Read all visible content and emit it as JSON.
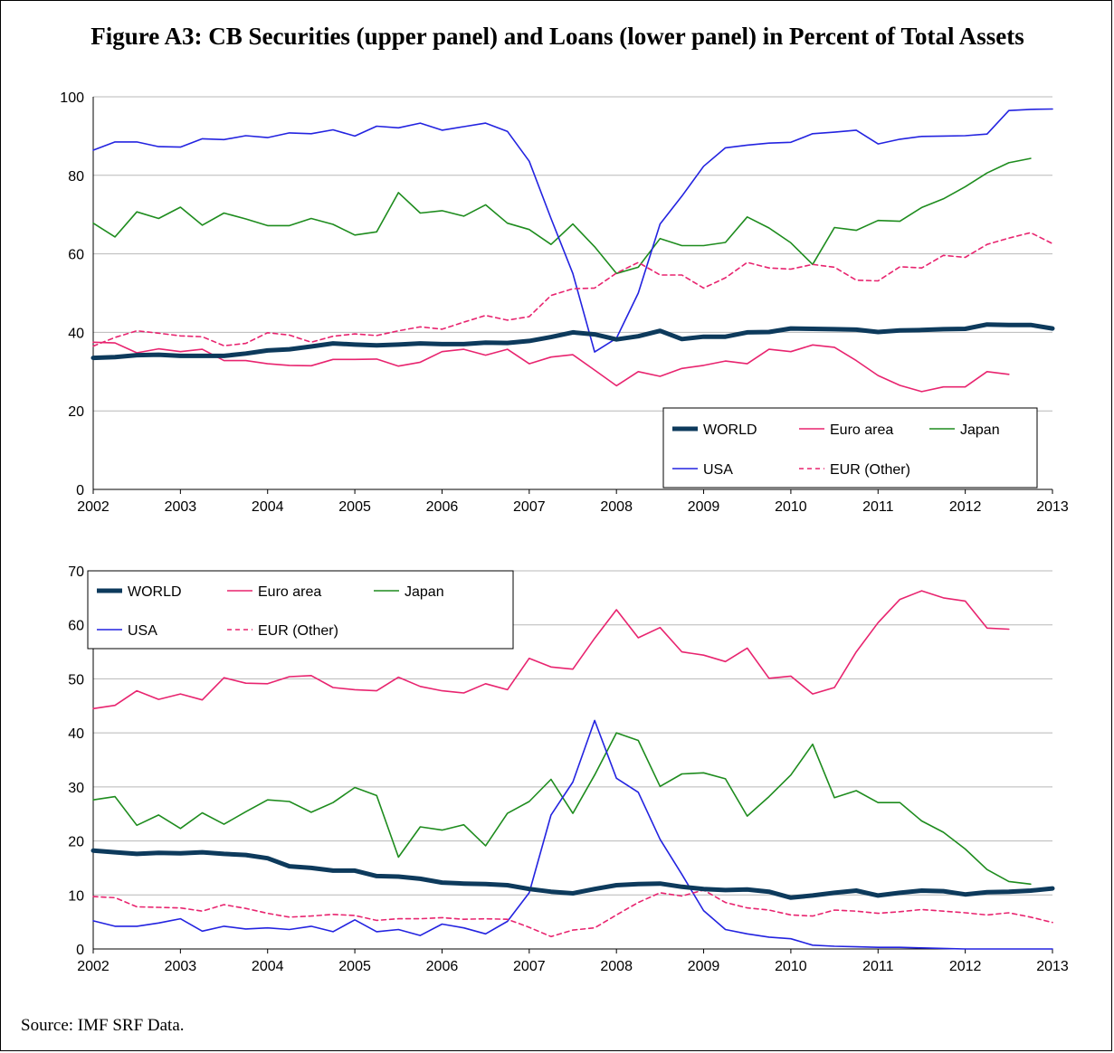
{
  "figure": {
    "title": "Figure A3: CB Securities (upper panel) and Loans (lower panel) in Percent of Total Assets",
    "source": "Source: IMF SRF Data."
  },
  "colors": {
    "WORLD": "#0d3a5c",
    "Euro area": "#e8246f",
    "Japan": "#1e8c1e",
    "USA": "#2323e0",
    "EUR (Other)": "#e8246f"
  },
  "chart_data": [
    {
      "type": "line",
      "panel": "upper",
      "title": "",
      "xlabel": "",
      "ylabel": "",
      "xlim": [
        2002,
        2013
      ],
      "ylim": [
        0,
        100
      ],
      "yticks": [
        0,
        20,
        40,
        60,
        80,
        100
      ],
      "xticks": [
        "2002",
        "2003",
        "2004",
        "2005",
        "2006",
        "2007",
        "2008",
        "2009",
        "2010",
        "2011",
        "2012",
        "2013"
      ],
      "grid": "horizontal",
      "legend": "bottom-right",
      "series": [
        {
          "name": "WORLD",
          "x": [
            2002,
            2002.25,
            2002.5,
            2002.75,
            2003,
            2003.25,
            2003.5,
            2003.75,
            2004,
            2004.25,
            2004.5,
            2004.75,
            2005,
            2005.25,
            2005.5,
            2005.75,
            2006,
            2006.25,
            2006.5,
            2006.75,
            2007,
            2007.25,
            2007.5,
            2007.75,
            2008,
            2008.25,
            2008.5,
            2008.75,
            2009,
            2009.25,
            2009.5,
            2009.75,
            2010,
            2010.25,
            2010.5,
            2010.75,
            2011,
            2011.25,
            2011.5,
            2011.75,
            2012,
            2012.25,
            2012.5,
            2012.75,
            2013
          ],
          "values": [
            33.5,
            33.7,
            34.2,
            34.3,
            34.0,
            34.0,
            34.0,
            34.6,
            35.4,
            35.7,
            36.4,
            37.2,
            36.9,
            36.7,
            36.9,
            37.2,
            37.0,
            37.0,
            37.4,
            37.3,
            37.8,
            38.8,
            40.0,
            39.5,
            38.2,
            39.0,
            40.4,
            38.3,
            38.9,
            38.9,
            40.0,
            40.1,
            41.0,
            40.9,
            40.8,
            40.7,
            40.1,
            40.5,
            40.6,
            40.8,
            40.9,
            42.0,
            41.9,
            41.9,
            41.0
          ]
        },
        {
          "name": "Euro area",
          "x": [
            2002,
            2002.25,
            2002.5,
            2002.75,
            2003,
            2003.25,
            2003.5,
            2003.75,
            2004,
            2004.25,
            2004.5,
            2004.75,
            2005,
            2005.25,
            2005.5,
            2005.75,
            2006,
            2006.25,
            2006.5,
            2006.75,
            2007,
            2007.25,
            2007.5,
            2007.75,
            2008,
            2008.25,
            2008.5,
            2008.75,
            2009,
            2009.25,
            2009.5,
            2009.75,
            2010,
            2010.25,
            2010.5,
            2010.75,
            2011,
            2011.25,
            2011.5,
            2011.75,
            2012,
            2012.25,
            2012.5
          ],
          "values": [
            37.5,
            37.3,
            34.8,
            35.8,
            35.1,
            35.7,
            32.8,
            32.8,
            32.0,
            31.6,
            31.5,
            33.1,
            33.1,
            33.2,
            31.4,
            32.4,
            35.1,
            35.7,
            34.2,
            35.7,
            32.0,
            33.7,
            34.3,
            30.4,
            26.4,
            30.0,
            28.8,
            30.8,
            31.6,
            32.7,
            32.0,
            35.7,
            35.1,
            36.8,
            36.2,
            32.8,
            29.0,
            26.5,
            24.9,
            26.1,
            26.1,
            30.0,
            29.3
          ]
        },
        {
          "name": "Japan",
          "x": [
            2002,
            2002.25,
            2002.5,
            2002.75,
            2003,
            2003.25,
            2003.5,
            2003.75,
            2004,
            2004.25,
            2004.5,
            2004.75,
            2005,
            2005.25,
            2005.5,
            2005.75,
            2006,
            2006.25,
            2006.5,
            2006.75,
            2007,
            2007.25,
            2007.5,
            2007.75,
            2008,
            2008.25,
            2008.5,
            2008.75,
            2009,
            2009.25,
            2009.5,
            2009.75,
            2010,
            2010.25,
            2010.5,
            2010.75,
            2011,
            2011.25,
            2011.5,
            2011.75,
            2012,
            2012.25,
            2012.5,
            2012.75
          ],
          "values": [
            67.8,
            64.3,
            70.7,
            69.0,
            71.9,
            67.3,
            70.4,
            68.9,
            67.2,
            67.2,
            69.0,
            67.5,
            64.8,
            65.6,
            75.6,
            70.4,
            71.0,
            69.6,
            72.5,
            67.8,
            66.2,
            62.4,
            67.6,
            61.8,
            55.0,
            56.6,
            63.9,
            62.1,
            62.1,
            62.9,
            69.4,
            66.6,
            62.8,
            57.3,
            66.7,
            66.0,
            68.5,
            68.3,
            71.8,
            74.0,
            77.1,
            80.6,
            83.2,
            84.3
          ]
        },
        {
          "name": "USA",
          "x": [
            2002,
            2002.25,
            2002.5,
            2002.75,
            2003,
            2003.25,
            2003.5,
            2003.75,
            2004,
            2004.25,
            2004.5,
            2004.75,
            2005,
            2005.25,
            2005.5,
            2005.75,
            2006,
            2006.25,
            2006.5,
            2006.75,
            2007,
            2007.25,
            2007.5,
            2007.75,
            2008,
            2008.25,
            2008.5,
            2008.75,
            2009,
            2009.25,
            2009.5,
            2009.75,
            2010,
            2010.25,
            2010.5,
            2010.75,
            2011,
            2011.25,
            2011.5,
            2011.75,
            2012,
            2012.25,
            2012.5,
            2012.75,
            2013
          ],
          "values": [
            86.4,
            88.5,
            88.5,
            87.3,
            87.2,
            89.3,
            89.1,
            90.1,
            89.6,
            90.8,
            90.6,
            91.6,
            90.0,
            92.5,
            92.1,
            93.3,
            91.5,
            92.4,
            93.3,
            91.2,
            83.6,
            69.0,
            55.0,
            35.0,
            38.5,
            50.0,
            67.6,
            74.7,
            82.3,
            87.0,
            87.7,
            88.2,
            88.4,
            90.6,
            91.0,
            91.5,
            88.0,
            89.2,
            89.9,
            90.0,
            90.1,
            90.5,
            96.5,
            96.8,
            96.9
          ]
        },
        {
          "name": "EUR (Other)",
          "dashed": true,
          "x": [
            2002,
            2002.25,
            2002.5,
            2002.75,
            2003,
            2003.25,
            2003.5,
            2003.75,
            2004,
            2004.25,
            2004.5,
            2004.75,
            2005,
            2005.25,
            2005.5,
            2005.75,
            2006,
            2006.25,
            2006.5,
            2006.75,
            2007,
            2007.25,
            2007.5,
            2007.75,
            2008,
            2008.25,
            2008.5,
            2008.75,
            2009,
            2009.25,
            2009.5,
            2009.75,
            2010,
            2010.25,
            2010.5,
            2010.75,
            2011,
            2011.25,
            2011.5,
            2011.75,
            2012,
            2012.25,
            2012.5,
            2012.75,
            2013
          ],
          "values": [
            36.5,
            38.7,
            40.4,
            39.8,
            39.1,
            38.9,
            36.6,
            37.2,
            39.9,
            39.3,
            37.5,
            39.0,
            39.6,
            39.2,
            40.4,
            41.4,
            40.8,
            42.6,
            44.3,
            43.1,
            44.0,
            49.4,
            51.1,
            51.3,
            55.1,
            57.8,
            54.6,
            54.6,
            51.3,
            53.9,
            57.8,
            56.4,
            56.1,
            57.3,
            56.6,
            53.3,
            53.1,
            56.7,
            56.4,
            59.6,
            59.1,
            62.4,
            64.0,
            65.4,
            62.6
          ]
        }
      ]
    },
    {
      "type": "line",
      "panel": "lower",
      "title": "",
      "xlabel": "",
      "ylabel": "",
      "xlim": [
        2002,
        2013
      ],
      "ylim": [
        0,
        70
      ],
      "yticks": [
        0,
        10,
        20,
        30,
        40,
        50,
        60,
        70
      ],
      "xticks": [
        "2002",
        "2003",
        "2004",
        "2005",
        "2006",
        "2007",
        "2008",
        "2009",
        "2010",
        "2011",
        "2012",
        "2013"
      ],
      "grid": "horizontal",
      "legend": "top-left",
      "series": [
        {
          "name": "WORLD",
          "x": [
            2002,
            2002.25,
            2002.5,
            2002.75,
            2003,
            2003.25,
            2003.5,
            2003.75,
            2004,
            2004.25,
            2004.5,
            2004.75,
            2005,
            2005.25,
            2005.5,
            2005.75,
            2006,
            2006.25,
            2006.5,
            2006.75,
            2007,
            2007.25,
            2007.5,
            2007.75,
            2008,
            2008.25,
            2008.5,
            2008.75,
            2009,
            2009.25,
            2009.5,
            2009.75,
            2010,
            2010.25,
            2010.5,
            2010.75,
            2011,
            2011.25,
            2011.5,
            2011.75,
            2012,
            2012.25,
            2012.5,
            2012.75,
            2013
          ],
          "values": [
            18.2,
            17.9,
            17.6,
            17.8,
            17.7,
            17.9,
            17.6,
            17.4,
            16.8,
            15.3,
            15.0,
            14.5,
            14.5,
            13.5,
            13.4,
            13.0,
            12.3,
            12.1,
            12.0,
            11.8,
            11.1,
            10.6,
            10.3,
            11.1,
            11.8,
            12.0,
            12.1,
            11.5,
            11.1,
            10.9,
            11.0,
            10.6,
            9.5,
            9.9,
            10.4,
            10.8,
            9.9,
            10.4,
            10.8,
            10.7,
            10.1,
            10.5,
            10.6,
            10.8,
            11.2
          ]
        },
        {
          "name": "Euro area",
          "x": [
            2002,
            2002.25,
            2002.5,
            2002.75,
            2003,
            2003.25,
            2003.5,
            2003.75,
            2004,
            2004.25,
            2004.5,
            2004.75,
            2005,
            2005.25,
            2005.5,
            2005.75,
            2006,
            2006.25,
            2006.5,
            2006.75,
            2007,
            2007.25,
            2007.5,
            2007.75,
            2008,
            2008.25,
            2008.5,
            2008.75,
            2009,
            2009.25,
            2009.5,
            2009.75,
            2010,
            2010.25,
            2010.5,
            2010.75,
            2011,
            2011.25,
            2011.5,
            2011.75,
            2012,
            2012.25,
            2012.5
          ],
          "values": [
            44.5,
            45.1,
            47.8,
            46.2,
            47.2,
            46.1,
            50.2,
            49.2,
            49.1,
            50.4,
            50.6,
            48.4,
            48.0,
            47.8,
            50.3,
            48.6,
            47.8,
            47.4,
            49.1,
            48.0,
            53.8,
            52.2,
            51.8,
            57.5,
            62.8,
            57.6,
            59.5,
            55.0,
            54.4,
            53.2,
            55.7,
            50.1,
            50.5,
            47.2,
            48.4,
            55.0,
            60.4,
            64.7,
            66.3,
            65.0,
            64.4,
            59.4,
            59.2
          ]
        },
        {
          "name": "Japan",
          "x": [
            2002,
            2002.25,
            2002.5,
            2002.75,
            2003,
            2003.25,
            2003.5,
            2003.75,
            2004,
            2004.25,
            2004.5,
            2004.75,
            2005,
            2005.25,
            2005.5,
            2005.75,
            2006,
            2006.25,
            2006.5,
            2006.75,
            2007,
            2007.25,
            2007.5,
            2007.75,
            2008,
            2008.25,
            2008.5,
            2008.75,
            2009,
            2009.25,
            2009.5,
            2009.75,
            2010,
            2010.25,
            2010.5,
            2010.75,
            2011,
            2011.25,
            2011.5,
            2011.75,
            2012,
            2012.25,
            2012.5,
            2012.75
          ],
          "values": [
            27.6,
            28.2,
            22.9,
            24.8,
            22.3,
            25.2,
            23.1,
            25.4,
            27.6,
            27.3,
            25.3,
            27.1,
            29.9,
            28.4,
            17.0,
            22.6,
            22.0,
            23.0,
            19.1,
            25.1,
            27.3,
            31.4,
            25.1,
            32.2,
            40.0,
            38.6,
            30.1,
            32.4,
            32.6,
            31.5,
            24.6,
            28.2,
            32.2,
            37.9,
            28.0,
            29.3,
            27.1,
            27.1,
            23.7,
            21.6,
            18.5,
            14.7,
            12.5,
            12.0
          ]
        },
        {
          "name": "USA",
          "x": [
            2002,
            2002.25,
            2002.5,
            2002.75,
            2003,
            2003.25,
            2003.5,
            2003.75,
            2004,
            2004.25,
            2004.5,
            2004.75,
            2005,
            2005.25,
            2005.5,
            2005.75,
            2006,
            2006.25,
            2006.5,
            2006.75,
            2007,
            2007.25,
            2007.5,
            2007.75,
            2008,
            2008.25,
            2008.5,
            2008.75,
            2009,
            2009.25,
            2009.5,
            2009.75,
            2010,
            2010.25,
            2010.5,
            2010.75,
            2011,
            2011.25,
            2011.5,
            2011.75,
            2012,
            2012.25,
            2012.5,
            2012.75,
            2013
          ],
          "values": [
            5.2,
            4.2,
            4.2,
            4.8,
            5.6,
            3.3,
            4.2,
            3.7,
            3.9,
            3.6,
            4.2,
            3.2,
            5.4,
            3.2,
            3.6,
            2.5,
            4.6,
            3.9,
            2.8,
            5.1,
            10.4,
            24.8,
            30.9,
            42.3,
            31.6,
            29.0,
            20.3,
            13.8,
            7.1,
            3.6,
            2.8,
            2.2,
            1.9,
            0.7,
            0.5,
            0.4,
            0.3,
            0.3,
            0.2,
            0.1,
            0.0,
            0.0,
            0.0,
            0.0,
            0.0
          ]
        },
        {
          "name": "EUR (Other)",
          "dashed": true,
          "x": [
            2002,
            2002.25,
            2002.5,
            2002.75,
            2003,
            2003.25,
            2003.5,
            2003.75,
            2004,
            2004.25,
            2004.5,
            2004.75,
            2005,
            2005.25,
            2005.5,
            2005.75,
            2006,
            2006.25,
            2006.5,
            2006.75,
            2007,
            2007.25,
            2007.5,
            2007.75,
            2008,
            2008.25,
            2008.5,
            2008.75,
            2009,
            2009.25,
            2009.5,
            2009.75,
            2010,
            2010.25,
            2010.5,
            2010.75,
            2011,
            2011.25,
            2011.5,
            2011.75,
            2012,
            2012.25,
            2012.5,
            2012.75,
            2013
          ],
          "values": [
            9.7,
            9.5,
            7.8,
            7.7,
            7.6,
            7.0,
            8.2,
            7.5,
            6.6,
            5.9,
            6.1,
            6.4,
            6.2,
            5.3,
            5.6,
            5.6,
            5.8,
            5.5,
            5.6,
            5.5,
            4.0,
            2.3,
            3.5,
            3.9,
            6.3,
            8.6,
            10.4,
            9.8,
            10.9,
            8.6,
            7.6,
            7.2,
            6.3,
            6.1,
            7.2,
            7.0,
            6.6,
            6.9,
            7.3,
            7.0,
            6.7,
            6.3,
            6.7,
            5.9,
            4.9
          ]
        }
      ]
    }
  ]
}
